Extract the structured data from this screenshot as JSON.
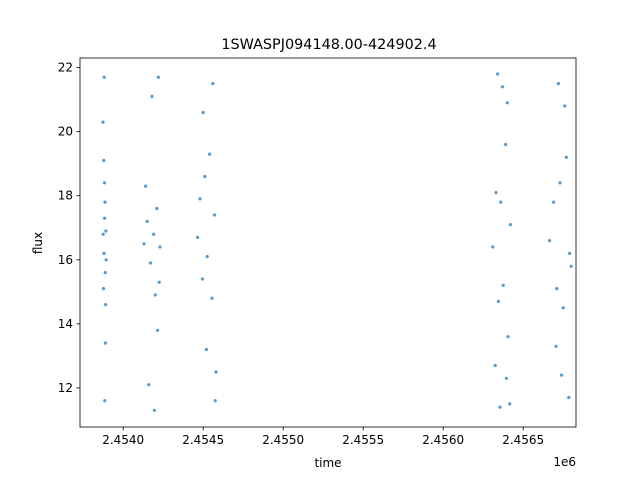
{
  "chart_data": {
    "type": "scatter",
    "title": "1SWASPJ094148.00-424902.4",
    "xlabel": "time",
    "ylabel": "flux",
    "x_offset_label": "1e6",
    "xlim": [
      2453730,
      2456830
    ],
    "ylim": [
      10.78,
      22.3
    ],
    "x_ticks": [
      2454000,
      2454500,
      2455000,
      2455500,
      2456000,
      2456500
    ],
    "x_tick_labels": [
      "2.4540",
      "2.4545",
      "2.4550",
      "2.4555",
      "2.4560",
      "2.4565"
    ],
    "y_ticks": [
      12,
      14,
      16,
      18,
      20,
      22
    ],
    "y_tick_labels": [
      "12",
      "14",
      "16",
      "18",
      "20",
      "22"
    ],
    "grid": false,
    "marker_color": "#1f77b4",
    "series": [
      {
        "points": [
          [
            2453875,
            16.8
          ],
          [
            2453880,
            16.2
          ],
          [
            2453884,
            17.3
          ],
          [
            2453888,
            15.6
          ],
          [
            2453892,
            16.9
          ],
          [
            2453877,
            15.1
          ],
          [
            2453883,
            18.4
          ],
          [
            2453890,
            14.6
          ],
          [
            2453879,
            19.1
          ],
          [
            2453886,
            17.8
          ],
          [
            2453893,
            16.0
          ],
          [
            2453881,
            21.7
          ],
          [
            2453874,
            20.3
          ],
          [
            2453889,
            13.4
          ],
          [
            2453885,
            11.6
          ],
          [
            2454130,
            16.5
          ],
          [
            2454150,
            17.2
          ],
          [
            2454170,
            15.9
          ],
          [
            2454190,
            16.8
          ],
          [
            2454210,
            17.6
          ],
          [
            2454225,
            15.3
          ],
          [
            2454140,
            18.3
          ],
          [
            2454200,
            14.9
          ],
          [
            2454180,
            21.1
          ],
          [
            2454220,
            21.7
          ],
          [
            2454160,
            12.1
          ],
          [
            2454215,
            13.8
          ],
          [
            2454195,
            11.3
          ],
          [
            2454230,
            16.4
          ],
          [
            2454465,
            16.7
          ],
          [
            2454480,
            17.9
          ],
          [
            2454495,
            15.4
          ],
          [
            2454510,
            18.6
          ],
          [
            2454525,
            16.1
          ],
          [
            2454540,
            19.3
          ],
          [
            2454555,
            14.8
          ],
          [
            2454570,
            17.4
          ],
          [
            2454500,
            20.6
          ],
          [
            2454560,
            21.5
          ],
          [
            2454520,
            13.2
          ],
          [
            2454575,
            11.6
          ],
          [
            2454580,
            12.5
          ],
          [
            2456310,
            16.4
          ],
          [
            2456330,
            18.1
          ],
          [
            2456345,
            14.7
          ],
          [
            2456360,
            17.8
          ],
          [
            2456375,
            15.2
          ],
          [
            2456390,
            19.6
          ],
          [
            2456405,
            13.6
          ],
          [
            2456420,
            17.1
          ],
          [
            2456340,
            21.8
          ],
          [
            2456370,
            21.4
          ],
          [
            2456400,
            20.9
          ],
          [
            2456355,
            11.4
          ],
          [
            2456395,
            12.3
          ],
          [
            2456415,
            11.5
          ],
          [
            2456325,
            12.7
          ],
          [
            2456665,
            16.6
          ],
          [
            2456690,
            17.8
          ],
          [
            2456710,
            15.1
          ],
          [
            2456730,
            18.4
          ],
          [
            2456750,
            14.5
          ],
          [
            2456770,
            19.2
          ],
          [
            2456790,
            16.2
          ],
          [
            2456800,
            15.8
          ],
          [
            2456720,
            21.5
          ],
          [
            2456760,
            20.8
          ],
          [
            2456785,
            11.7
          ],
          [
            2456740,
            12.4
          ],
          [
            2456705,
            13.3
          ]
        ]
      }
    ]
  }
}
